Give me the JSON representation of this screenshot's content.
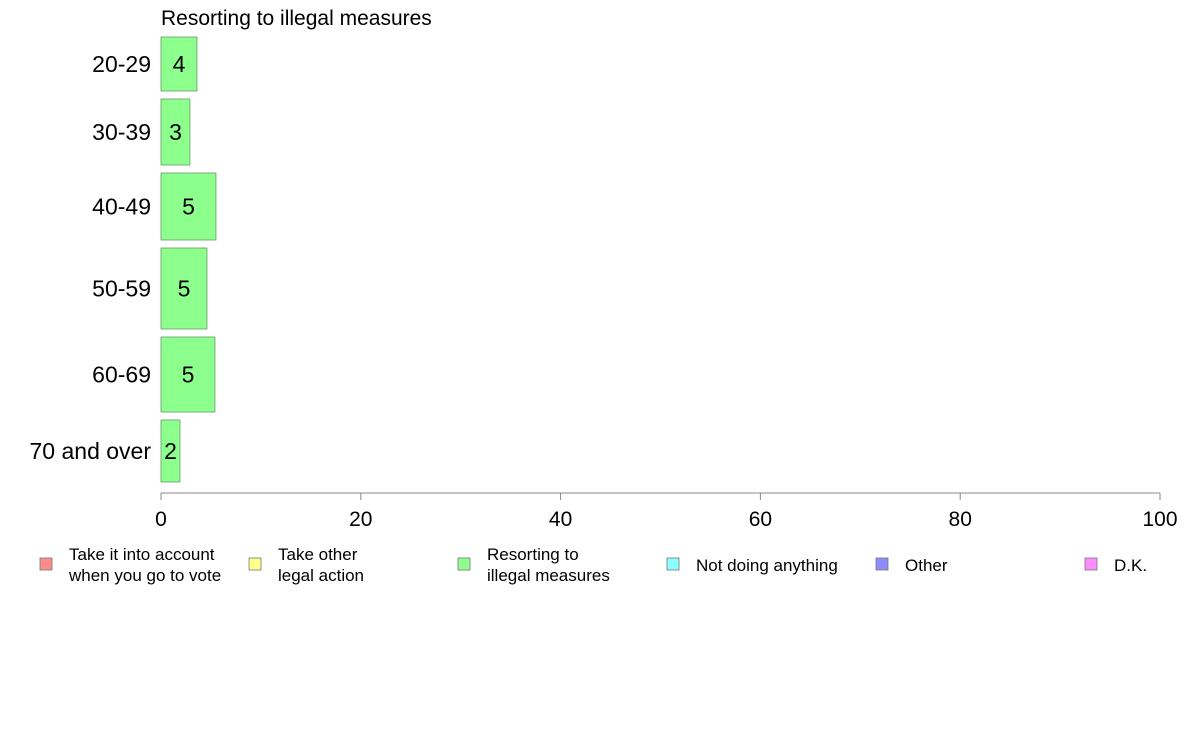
{
  "chart_data": {
    "type": "bar",
    "orientation": "horizontal",
    "title": "Resorting to illegal measures",
    "categories": [
      "20-29",
      "30-39",
      "40-49",
      "50-59",
      "60-69",
      "70 and over"
    ],
    "series": [
      {
        "name": "Resorting to illegal measures",
        "values": [
          4,
          3,
          5,
          5,
          5,
          2
        ],
        "color": "#8cff8c"
      }
    ],
    "approx_values": [
      3.6,
      2.9,
      5.5,
      4.6,
      5.4,
      1.9
    ],
    "xlim": [
      0,
      100
    ],
    "xticks": [
      "0",
      "20",
      "40",
      "60",
      "80",
      "100"
    ],
    "grid": false,
    "legend_position": "bottom",
    "legend": [
      {
        "lines": [
          "Take it into account",
          "when you go to vote"
        ],
        "color": "#ff8c8c"
      },
      {
        "lines": [
          "Take other",
          "legal action"
        ],
        "color": "#ffff8c"
      },
      {
        "lines": [
          "Resorting to",
          "illegal measures"
        ],
        "color": "#8cff8c"
      },
      {
        "lines": [
          "Not doing anything"
        ],
        "color": "#8cffff"
      },
      {
        "lines": [
          "Other"
        ],
        "color": "#8c8cff"
      },
      {
        "lines": [
          "D.K."
        ],
        "color": "#ff8cff"
      }
    ]
  }
}
